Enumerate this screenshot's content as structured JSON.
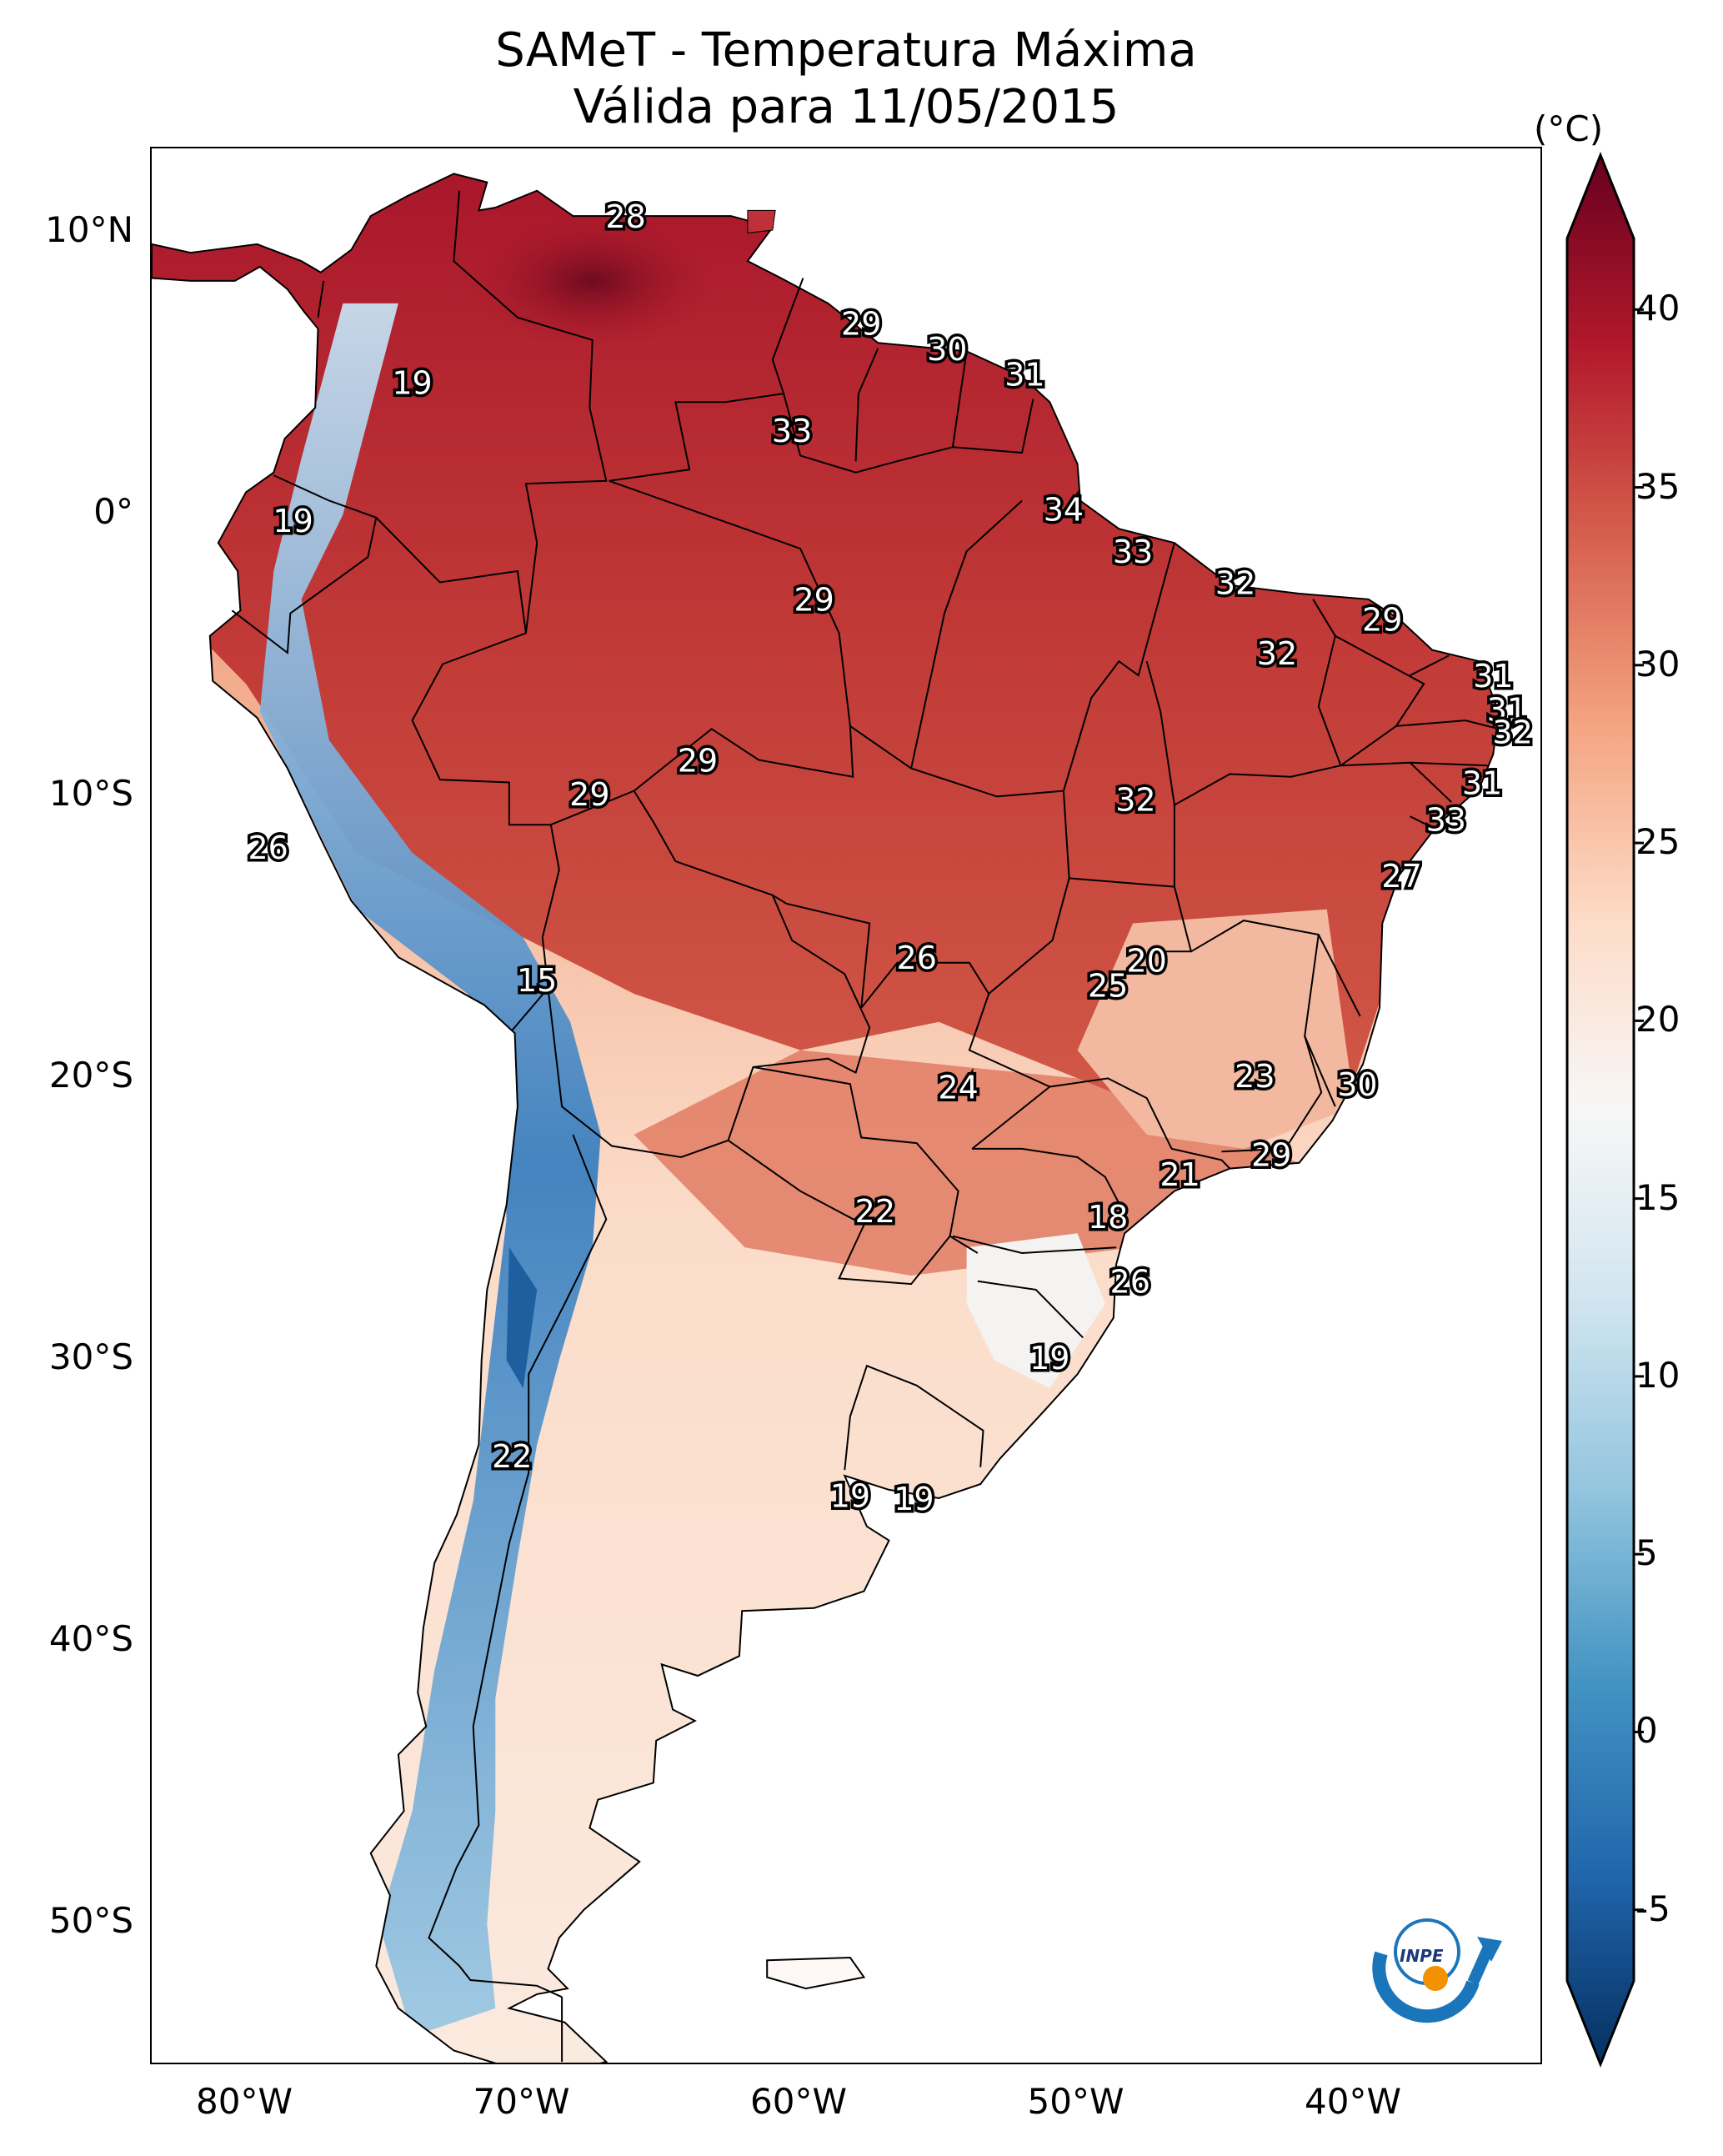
{
  "title_line1": "SAMeT - Temperatura Máxima",
  "title_line2": "Válida para 11/05/2015",
  "colorbar": {
    "unit": "(°C)",
    "ticks": [
      "40",
      "35",
      "30",
      "25",
      "20",
      "15",
      "10",
      "5",
      "0",
      "-5"
    ],
    "min": -7,
    "max": 42,
    "colors": [
      "#053061",
      "#2166ac",
      "#4393c3",
      "#92c5de",
      "#d1e5f0",
      "#f7f7f7",
      "#fddbc7",
      "#f4a582",
      "#d6604d",
      "#b2182b",
      "#67001f"
    ]
  },
  "axes": {
    "lat_labels": [
      "10°N",
      "0°",
      "10°S",
      "20°S",
      "30°S",
      "40°S",
      "50°S"
    ],
    "lon_labels": [
      "80°W",
      "70°W",
      "60°W",
      "50°W",
      "40°W"
    ]
  },
  "map_labels": [
    {
      "text": "28",
      "lon": -66.3,
      "lat": 10.5
    },
    {
      "text": "19",
      "lon": -74.0,
      "lat": 4.6
    },
    {
      "text": "29",
      "lon": -57.8,
      "lat": 6.7
    },
    {
      "text": "30",
      "lon": -54.7,
      "lat": 5.8
    },
    {
      "text": "31",
      "lon": -51.9,
      "lat": 4.9
    },
    {
      "text": "33",
      "lon": -60.3,
      "lat": 2.9
    },
    {
      "text": "19",
      "lon": -78.3,
      "lat": -0.3
    },
    {
      "text": "34",
      "lon": -50.5,
      "lat": 0.1
    },
    {
      "text": "33",
      "lon": -48.0,
      "lat": -1.4
    },
    {
      "text": "29",
      "lon": -59.5,
      "lat": -3.1
    },
    {
      "text": "32",
      "lon": -44.3,
      "lat": -2.5
    },
    {
      "text": "29",
      "lon": -39.0,
      "lat": -3.8
    },
    {
      "text": "32",
      "lon": -42.8,
      "lat": -5.0
    },
    {
      "text": "31",
      "lon": -35.0,
      "lat": -5.8
    },
    {
      "text": "31",
      "lon": -34.5,
      "lat": -7.0
    },
    {
      "text": "32",
      "lon": -34.3,
      "lat": -7.8
    },
    {
      "text": "29",
      "lon": -63.7,
      "lat": -8.8
    },
    {
      "text": "29",
      "lon": -67.6,
      "lat": -10.0
    },
    {
      "text": "32",
      "lon": -47.9,
      "lat": -10.2
    },
    {
      "text": "31",
      "lon": -35.4,
      "lat": -9.6
    },
    {
      "text": "33",
      "lon": -36.7,
      "lat": -10.9
    },
    {
      "text": "26",
      "lon": -79.2,
      "lat": -11.9
    },
    {
      "text": "27",
      "lon": -38.3,
      "lat": -12.9
    },
    {
      "text": "26",
      "lon": -55.8,
      "lat": -15.8
    },
    {
      "text": "20",
      "lon": -47.5,
      "lat": -15.9
    },
    {
      "text": "25",
      "lon": -48.9,
      "lat": -16.8
    },
    {
      "text": "15",
      "lon": -69.5,
      "lat": -16.6
    },
    {
      "text": "23",
      "lon": -43.6,
      "lat": -20.0
    },
    {
      "text": "30",
      "lon": -39.9,
      "lat": -20.3
    },
    {
      "text": "24",
      "lon": -54.3,
      "lat": -20.4
    },
    {
      "text": "29",
      "lon": -43.0,
      "lat": -22.8
    },
    {
      "text": "21",
      "lon": -46.3,
      "lat": -23.5
    },
    {
      "text": "22",
      "lon": -57.3,
      "lat": -24.8
    },
    {
      "text": "18",
      "lon": -48.9,
      "lat": -25.0
    },
    {
      "text": "26",
      "lon": -48.1,
      "lat": -27.3
    },
    {
      "text": "19",
      "lon": -51.0,
      "lat": -30.0
    },
    {
      "text": "22",
      "lon": -70.4,
      "lat": -33.5
    },
    {
      "text": "19",
      "lon": -58.2,
      "lat": -34.9
    },
    {
      "text": "19",
      "lon": -55.9,
      "lat": -35.0
    }
  ],
  "logo": {
    "text": "INPE"
  }
}
